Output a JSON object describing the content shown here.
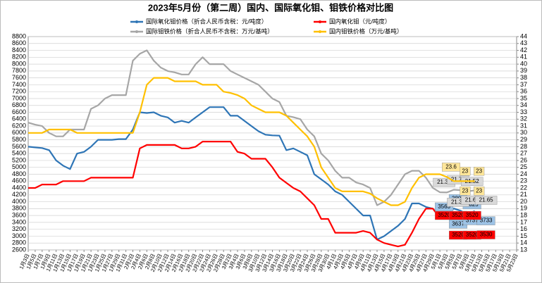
{
  "chart_data": {
    "type": "line",
    "title": "2023年5月份（第二周）国内、国际氧化钼、钼铁价格对比图",
    "categories": [
      "1月3日",
      "1月5日",
      "1月7日",
      "1月9日",
      "1月11日",
      "1月13日",
      "1月15日",
      "1月17日",
      "1月19日",
      "1月21日",
      "1月23日",
      "1月25日",
      "1月27日",
      "1月29日",
      "1月31日",
      "2月2日",
      "2月4日",
      "2月6日",
      "2月8日",
      "2月10日",
      "2月12日",
      "2月14日",
      "2月16日",
      "2月18日",
      "2月20日",
      "2月22日",
      "2月24日",
      "2月26日",
      "2月28日",
      "3月2日",
      "3月4日",
      "3月6日",
      "3月8日",
      "3月10日",
      "3月12日",
      "3月14日",
      "3月16日",
      "3月18日",
      "3月20日",
      "3月22日",
      "3月24日",
      "3月26日",
      "3月28日",
      "3月30日",
      "4月1日",
      "4月3日",
      "4月5日",
      "4月7日",
      "4月9日",
      "4月11日",
      "4月13日",
      "4月15日",
      "4月17日",
      "4月19日",
      "4月21日",
      "4月23日",
      "4月25日",
      "4月27日",
      "4月29日",
      "5月1日",
      "5月3日",
      "5月5日",
      "5月7日",
      "5月9日",
      "5月11日",
      "5月13日",
      "5月15日",
      "5月17日",
      "5月19日",
      "5月21日",
      "5月23日"
    ],
    "series": [
      {
        "name": "国际氧化钼价格（折合人民币含税：元/吨度）",
        "color": "#2e75b6",
        "values": [
          5600,
          5580,
          5560,
          5500,
          5200,
          5050,
          4950,
          5400,
          5450,
          5600,
          5800,
          5800,
          5800,
          5820,
          5820,
          6100,
          6600,
          6580,
          6600,
          6500,
          6450,
          6300,
          6350,
          6300,
          6450,
          6600,
          6750,
          6750,
          6750,
          6500,
          6500,
          6350,
          6200,
          6050,
          5950,
          5930,
          5920,
          5500,
          5550,
          5450,
          5350,
          4800,
          4650,
          4500,
          4300,
          4200,
          4000,
          3800,
          3600,
          3600,
          2900,
          3000,
          3150,
          3300,
          3500,
          3950,
          3950,
          3850,
          3800,
          3563,
          3637,
          3803,
          3737,
          3625,
          3733,
          null,
          null,
          null,
          null,
          null,
          null
        ],
        "value_labels": [
          null,
          null,
          null,
          null,
          null,
          null,
          null,
          null,
          null,
          null,
          null,
          null,
          null,
          null,
          null,
          null,
          null,
          null,
          null,
          null,
          null,
          null,
          null,
          null,
          null,
          null,
          null,
          null,
          null,
          null,
          null,
          null,
          null,
          null,
          null,
          null,
          null,
          null,
          null,
          null,
          null,
          null,
          null,
          null,
          null,
          null,
          null,
          null,
          null,
          null,
          null,
          null,
          null,
          null,
          null,
          null,
          null,
          null,
          null,
          "3563",
          "3637",
          "3803",
          "3737",
          "3625",
          "3733",
          null,
          null,
          null,
          null,
          null,
          null
        ]
      },
      {
        "name": "国内氧化钼（元/吨度）",
        "color": "#ff0000",
        "values": [
          4400,
          4400,
          4500,
          4500,
          4500,
          4600,
          4600,
          4600,
          4600,
          4700,
          4700,
          4700,
          4700,
          4700,
          4700,
          4700,
          5550,
          5650,
          5650,
          5650,
          5650,
          5650,
          5550,
          5550,
          5600,
          5750,
          5750,
          5750,
          5750,
          5750,
          5450,
          5400,
          5250,
          5250,
          5250,
          5000,
          4700,
          4550,
          4400,
          4300,
          4100,
          3900,
          3500,
          3500,
          3100,
          3100,
          3100,
          3100,
          3150,
          3100,
          2900,
          2800,
          2750,
          2700,
          2750,
          3100,
          3500,
          3800,
          3800,
          3520,
          3520,
          3520,
          3520,
          3520,
          3530,
          null,
          null,
          null,
          null,
          null,
          null
        ],
        "value_labels": [
          null,
          null,
          null,
          null,
          null,
          null,
          null,
          null,
          null,
          null,
          null,
          null,
          null,
          null,
          null,
          null,
          null,
          null,
          null,
          null,
          null,
          null,
          null,
          null,
          null,
          null,
          null,
          null,
          null,
          null,
          null,
          null,
          null,
          null,
          null,
          null,
          null,
          null,
          null,
          null,
          null,
          null,
          null,
          null,
          null,
          null,
          null,
          null,
          null,
          null,
          null,
          null,
          null,
          null,
          null,
          null,
          null,
          null,
          null,
          "3520",
          "3520",
          "3520",
          "3520",
          "3520",
          "3530",
          null,
          null,
          null,
          null,
          null,
          null
        ]
      },
      {
        "name": "国际钼铁价格（折合人民币不含税：万元/基吨）",
        "color": "#a6a6a6",
        "axis": "y2",
        "values": [
          31.5,
          31.2,
          31,
          30,
          29.5,
          29.5,
          30.5,
          30.5,
          30.5,
          33.5,
          34,
          35,
          35.5,
          35.5,
          35.5,
          40.5,
          41.5,
          42,
          40.5,
          39.5,
          39,
          38.8,
          38.5,
          38.5,
          40,
          41,
          40,
          40,
          40,
          39,
          38.5,
          38,
          37.5,
          37,
          36,
          35,
          34.5,
          32.5,
          32.3,
          32,
          30.5,
          29.5,
          27,
          26,
          24.5,
          23.5,
          23.5,
          22.8,
          22.5,
          22,
          19.5,
          20,
          21,
          22.5,
          24,
          24.5,
          24.5,
          23.5,
          22,
          21.38,
          21.35,
          21.75,
          21.68,
          21.52,
          21.65,
          null,
          null,
          null,
          null,
          null,
          null
        ],
        "value_labels": [
          null,
          null,
          null,
          null,
          null,
          null,
          null,
          null,
          null,
          null,
          null,
          null,
          null,
          null,
          null,
          null,
          null,
          null,
          null,
          null,
          null,
          null,
          null,
          null,
          null,
          null,
          null,
          null,
          null,
          null,
          null,
          null,
          null,
          null,
          null,
          null,
          null,
          null,
          null,
          null,
          null,
          null,
          null,
          null,
          null,
          null,
          null,
          null,
          null,
          null,
          null,
          null,
          null,
          null,
          null,
          null,
          null,
          null,
          null,
          "21.38",
          "21.35",
          "21.75",
          "21.68",
          "21.52",
          "21.65",
          null,
          null,
          null,
          null,
          null,
          null
        ]
      },
      {
        "name": "国内钼铁价格（万元/基吨）",
        "color": "#ffc000",
        "axis": "y2",
        "values": [
          30,
          30,
          30,
          30.5,
          30.5,
          30.5,
          30.5,
          30,
          30,
          30,
          30,
          30,
          30,
          30,
          30,
          30,
          33,
          37,
          38,
          38,
          38,
          37.5,
          37.5,
          37.5,
          37.5,
          37,
          37,
          37,
          36,
          35.8,
          35.5,
          35,
          34,
          33.5,
          33,
          33,
          33,
          32.5,
          31.5,
          30.5,
          29.5,
          28,
          25,
          23.5,
          22,
          21.5,
          21.5,
          21.5,
          21.5,
          21.2,
          20.5,
          20,
          19.5,
          19.5,
          20,
          22,
          23.5,
          24,
          24,
          24,
          23.6,
          23,
          23,
          23,
          23,
          null,
          null,
          null,
          null,
          null,
          null
        ],
        "value_labels": [
          null,
          null,
          null,
          null,
          null,
          null,
          null,
          null,
          null,
          null,
          null,
          null,
          null,
          null,
          null,
          null,
          null,
          null,
          null,
          null,
          null,
          null,
          null,
          null,
          null,
          null,
          null,
          null,
          null,
          null,
          null,
          null,
          null,
          null,
          null,
          null,
          null,
          null,
          null,
          null,
          null,
          null,
          null,
          null,
          null,
          null,
          null,
          null,
          null,
          null,
          null,
          null,
          null,
          null,
          null,
          null,
          null,
          null,
          null,
          null,
          "23.6",
          "23",
          "23",
          "23",
          "23",
          null,
          null,
          null,
          null,
          null,
          null
        ]
      }
    ],
    "ylim": [
      2600,
      8800
    ],
    "yticks": [
      2600,
      2800,
      3000,
      3200,
      3400,
      3600,
      3800,
      4000,
      4200,
      4400,
      4600,
      4800,
      5000,
      5200,
      5400,
      5600,
      5800,
      6000,
      6200,
      6400,
      6600,
      6800,
      7000,
      7200,
      7400,
      7600,
      7800,
      8000,
      8200,
      8400,
      8600,
      8800
    ],
    "y2lim": [
      13,
      44
    ],
    "y2ticks": [
      13,
      14,
      15,
      16,
      17,
      18,
      19,
      20,
      21,
      22,
      23,
      24,
      25,
      26,
      27,
      28,
      29,
      30,
      31,
      32,
      33,
      34,
      35,
      36,
      37,
      38,
      39,
      40,
      41,
      42,
      43,
      44
    ],
    "grid": true,
    "legend": "top"
  }
}
